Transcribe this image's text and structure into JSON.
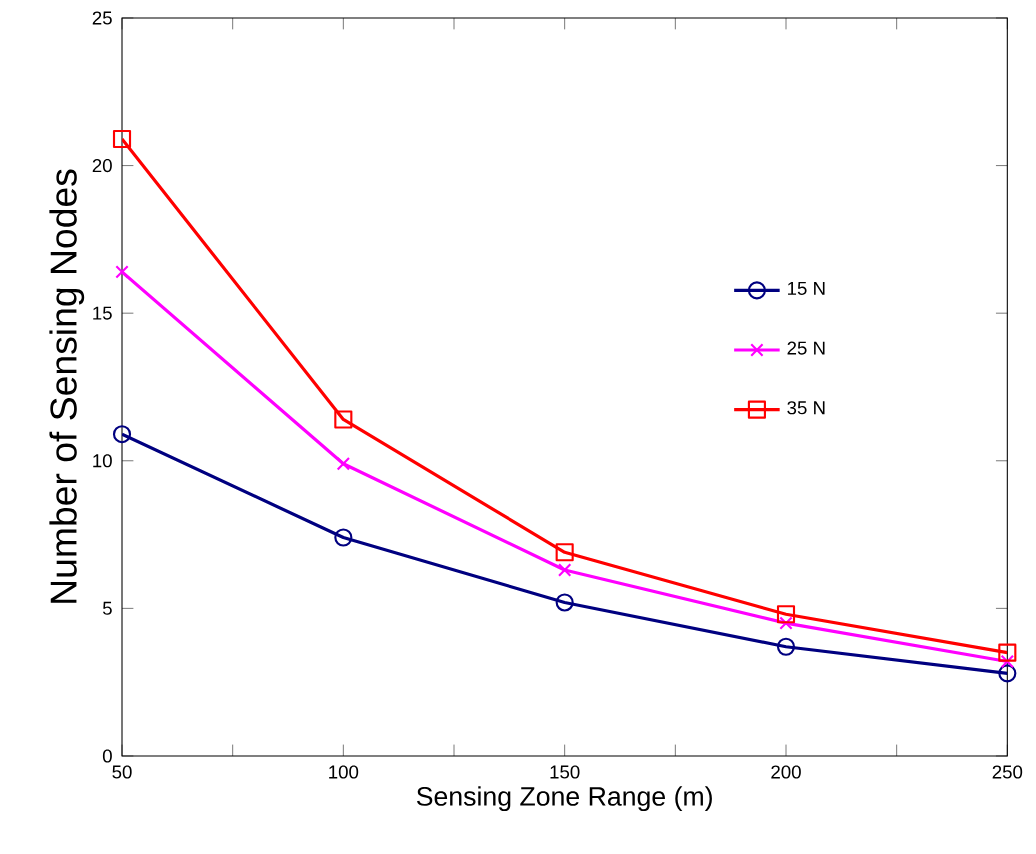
{
  "chart_data": {
    "type": "line",
    "xlabel": "Sensing Zone Range (m)",
    "ylabel": "Number of Sensing Nodes",
    "x": [
      50,
      100,
      150,
      200,
      250
    ],
    "series": [
      {
        "name": "15 N",
        "color": "#000080",
        "marker": "circle",
        "values": [
          10.9,
          7.4,
          5.2,
          3.7,
          2.8
        ]
      },
      {
        "name": "25 N",
        "color": "#ff00ff",
        "marker": "cross",
        "values": [
          16.4,
          9.9,
          6.3,
          4.5,
          3.2
        ]
      },
      {
        "name": "35 N",
        "color": "#ff0000",
        "marker": "square",
        "values": [
          20.9,
          11.4,
          6.9,
          4.8,
          3.5
        ]
      }
    ],
    "xlim": [
      50,
      250
    ],
    "ylim": [
      0,
      25
    ],
    "xticks": [
      50,
      {
        "value": 75,
        "label": null
      },
      100,
      {
        "value": 125,
        "label": null
      },
      150,
      {
        "value": 175,
        "label": null
      },
      200,
      {
        "value": 225,
        "label": null
      },
      250
    ],
    "yticks": [
      0,
      5,
      10,
      15,
      20,
      25
    ],
    "legend": "right",
    "line_style": "solid",
    "grid": false
  }
}
